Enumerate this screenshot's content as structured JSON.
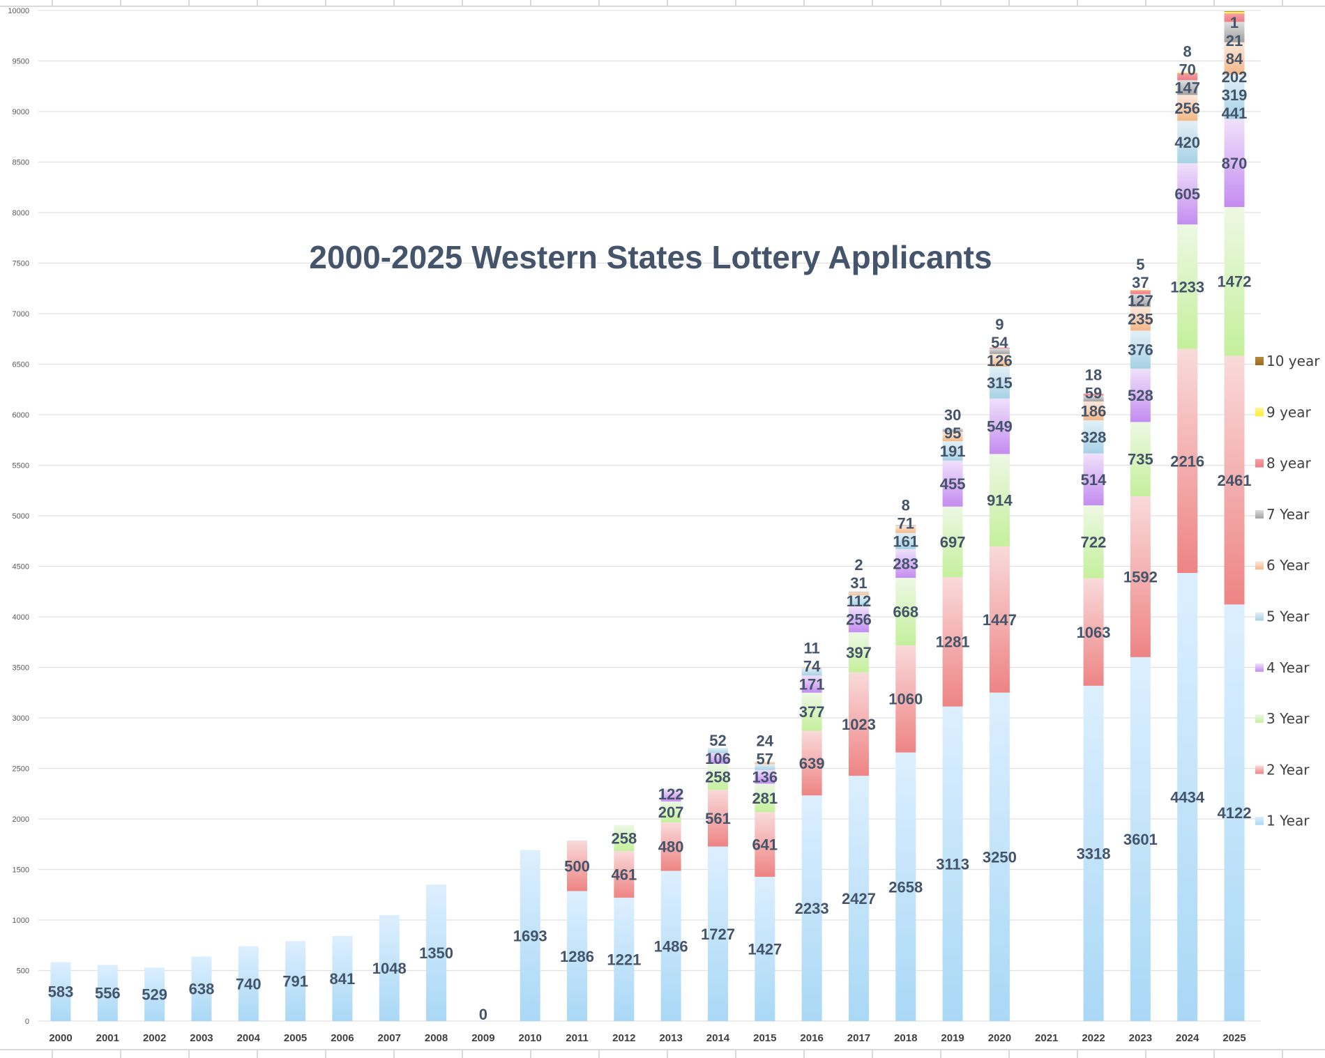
{
  "chart_data": {
    "type": "bar",
    "stacked": true,
    "title": "2000-2025 Western States Lottery Applicants",
    "xlabel": "",
    "ylabel": "",
    "ylim": [
      0,
      10000
    ],
    "yticks": [
      0,
      500,
      1000,
      1500,
      2000,
      2500,
      3000,
      3500,
      4000,
      4500,
      5000,
      5500,
      6000,
      6500,
      7000,
      7500,
      8000,
      8500,
      9000,
      9500,
      10000
    ],
    "grid": true,
    "legend_position": "right",
    "categories": [
      "2000",
      "2001",
      "2002",
      "2003",
      "2004",
      "2005",
      "2006",
      "2007",
      "2008",
      "2009",
      "2010",
      "2011",
      "2012",
      "2013",
      "2014",
      "2015",
      "2016",
      "2017",
      "2018",
      "2019",
      "2020",
      "2021",
      "2022",
      "2023",
      "2024",
      "2025"
    ],
    "series": [
      {
        "name": "1 Year",
        "color": "#a9d8f5",
        "color_light": "#dcefff",
        "values": [
          583,
          556,
          529,
          638,
          740,
          791,
          841,
          1048,
          1350,
          0,
          1693,
          1286,
          1221,
          1486,
          1727,
          1427,
          2233,
          2427,
          2658,
          3113,
          3250,
          null,
          3318,
          3601,
          4434,
          4122
        ]
      },
      {
        "name": "2 Year",
        "color": "#ee8484",
        "color_light": "#f9dada",
        "values": [
          null,
          null,
          null,
          null,
          null,
          null,
          null,
          null,
          null,
          null,
          null,
          500,
          461,
          480,
          561,
          641,
          639,
          1023,
          1060,
          1281,
          1447,
          null,
          1063,
          1592,
          2216,
          2461
        ]
      },
      {
        "name": "3 Year",
        "color": "#c4f09c",
        "color_light": "#edf8e4",
        "values": [
          null,
          null,
          null,
          null,
          null,
          null,
          null,
          null,
          null,
          null,
          null,
          null,
          258,
          207,
          258,
          281,
          377,
          397,
          668,
          697,
          914,
          null,
          722,
          735,
          1233,
          1472
        ]
      },
      {
        "name": "4 Year",
        "color": "#c48cf0",
        "color_light": "#efe1fb",
        "values": [
          null,
          null,
          null,
          null,
          null,
          null,
          null,
          null,
          null,
          null,
          null,
          null,
          null,
          122,
          106,
          136,
          171,
          256,
          283,
          455,
          549,
          null,
          514,
          528,
          605,
          870
        ]
      },
      {
        "name": "5 Year",
        "color": "#a6d2e6",
        "color_light": "#e3f0f6",
        "values": [
          null,
          null,
          null,
          null,
          null,
          null,
          null,
          null,
          null,
          null,
          null,
          null,
          null,
          null,
          52,
          57,
          74,
          112,
          161,
          191,
          315,
          null,
          328,
          376,
          420,
          441
        ]
      },
      {
        "name": "6 Year",
        "color": "#f4b886",
        "color_light": "#fbe8dc",
        "values": [
          null,
          null,
          null,
          null,
          null,
          null,
          null,
          null,
          null,
          null,
          null,
          null,
          null,
          null,
          null,
          24,
          11,
          31,
          71,
          95,
          126,
          null,
          186,
          235,
          256,
          319
        ]
      },
      {
        "name": "7 Year",
        "color": "#a0a0a0",
        "color_light": "#dedede",
        "values": [
          null,
          null,
          null,
          null,
          null,
          null,
          null,
          null,
          null,
          null,
          null,
          null,
          null,
          null,
          null,
          null,
          null,
          2,
          8,
          30,
          54,
          null,
          59,
          127,
          147,
          202
        ]
      },
      {
        "name": "8 year",
        "color": "#ee7d84",
        "color_light": "#f4a0a4",
        "values": [
          null,
          null,
          null,
          null,
          null,
          null,
          null,
          null,
          null,
          null,
          null,
          null,
          null,
          null,
          null,
          null,
          null,
          null,
          null,
          null,
          9,
          null,
          18,
          37,
          70,
          84
        ]
      },
      {
        "name": "9 year",
        "color": "#ffee33",
        "color_light": "#fff58a",
        "values": [
          null,
          null,
          null,
          null,
          null,
          null,
          null,
          null,
          null,
          null,
          null,
          null,
          null,
          null,
          null,
          null,
          null,
          null,
          null,
          null,
          null,
          null,
          null,
          5,
          8,
          21
        ]
      },
      {
        "name": "10 year",
        "color": "#9a6a1f",
        "color_light": "#b8893f",
        "values": [
          null,
          null,
          null,
          null,
          null,
          null,
          null,
          null,
          null,
          null,
          null,
          null,
          null,
          null,
          null,
          null,
          null,
          null,
          null,
          null,
          null,
          null,
          null,
          null,
          null,
          1
        ]
      }
    ]
  }
}
